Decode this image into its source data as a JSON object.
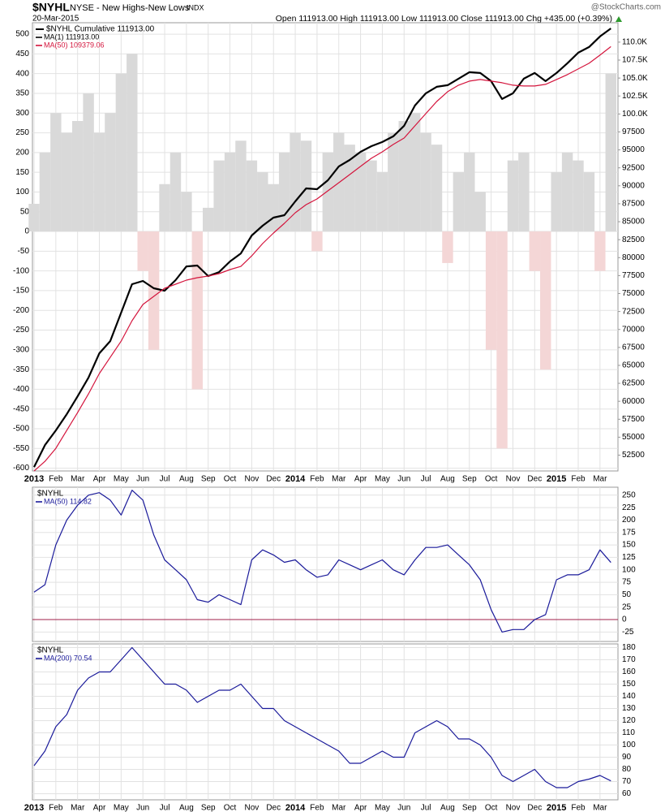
{
  "header": {
    "symbol": "$NYHL",
    "name": "NYSE - New Highs-New Lows",
    "exchange": "INDX",
    "date": "20-Mar-2015",
    "quote": "Open 111913.00  High 111913.00  Low 111913.00  Close 111913.00  Chg +435.00 (+0.39%)",
    "credit": "@StockCharts.com"
  },
  "chart_data": [
    {
      "type": "line",
      "title": "$NYHL Cumulative 111913.00",
      "title_color": "#000000",
      "categories": [
        "2013",
        null,
        "Feb",
        null,
        "Mar",
        null,
        "Apr",
        null,
        "May",
        null,
        "Jun",
        null,
        "Jul",
        null,
        "Aug",
        null,
        "Sep",
        null,
        "Oct",
        null,
        "Nov",
        null,
        "Dec",
        null,
        "2014",
        null,
        "Feb",
        null,
        "Mar",
        null,
        "Apr",
        null,
        "May",
        null,
        "Jun",
        null,
        "Jul",
        null,
        "Aug",
        null,
        "Sep",
        null,
        "Oct",
        null,
        "Nov",
        null,
        "Dec",
        null,
        "2015",
        null,
        "Feb",
        null,
        "Mar",
        null
      ],
      "ylim": [
        -607,
        529
      ],
      "yticks": [
        -600,
        -550,
        -500,
        -450,
        -400,
        -350,
        -300,
        -250,
        -200,
        -150,
        -100,
        -50,
        0,
        50,
        100,
        150,
        200,
        250,
        300,
        350,
        400,
        450,
        500
      ],
      "y2lim": [
        50300,
        112700
      ],
      "y2ticks": [
        52500,
        55000,
        57500,
        60000,
        62500,
        65000,
        67500,
        70000,
        72500,
        75000,
        77500,
        80000,
        82500,
        85000,
        87500,
        90000,
        92500,
        95000,
        97500,
        {
          "value": 100000,
          "label": "100.0K"
        },
        {
          "value": 102500,
          "label": "102.5K"
        },
        {
          "value": 105000,
          "label": "105.0K"
        },
        {
          "value": 107500,
          "label": "107.5K"
        },
        {
          "value": 110000,
          "label": "110.0K"
        }
      ],
      "grid": true,
      "series": [
        {
          "type": "area",
          "color": "#d9d9d9",
          "negative_color": "#f4d6d6",
          "values": [
            70,
            200,
            300,
            250,
            280,
            350,
            250,
            300,
            400,
            450,
            -100,
            -300,
            120,
            200,
            100,
            -400,
            60,
            180,
            200,
            230,
            180,
            150,
            120,
            200,
            250,
            230,
            -50,
            200,
            250,
            220,
            200,
            180,
            150,
            250,
            280,
            300,
            250,
            220,
            -80,
            150,
            200,
            100,
            -300,
            -550,
            180,
            200,
            -100,
            -350,
            150,
            200,
            180,
            150,
            -100,
            400
          ]
        },
        {
          "name": "MA(1) 111913.00",
          "axis": "y2",
          "color": "#000000",
          "width": 2.2,
          "values": [
            50837,
            53900,
            55940,
            58200,
            60690,
            63290,
            66680,
            68380,
            72340,
            76300,
            76750,
            75730,
            75390,
            76860,
            78780,
            78900,
            77430,
            77990,
            79460,
            80590,
            83080,
            84440,
            85570,
            85910,
            87830,
            89640,
            89530,
            90770,
            92700,
            93600,
            94730,
            95520,
            96090,
            96880,
            98350,
            101180,
            102880,
            103780,
            104010,
            104910,
            105820,
            105700,
            104570,
            102080,
            102880,
            104910,
            105700,
            104570,
            105700,
            107060,
            108530,
            109320,
            110790,
            111913
          ]
        },
        {
          "name": "MA(50) 109379.06",
          "axis": "y2",
          "color": "#d4143c",
          "width": 1.2,
          "values": [
            50290,
            51630,
            53440,
            55940,
            58430,
            61030,
            63860,
            66120,
            68380,
            71210,
            73470,
            74600,
            75730,
            76300,
            76860,
            77200,
            77430,
            77770,
            78330,
            78780,
            80250,
            81950,
            83420,
            84780,
            86250,
            87380,
            88170,
            89300,
            90430,
            91560,
            92700,
            93830,
            94730,
            95750,
            96650,
            98350,
            100050,
            101740,
            103100,
            104010,
            104570,
            104800,
            104570,
            104350,
            104010,
            103890,
            103890,
            104120,
            104800,
            105480,
            106270,
            107060,
            108190,
            109379
          ]
        }
      ]
    },
    {
      "type": "line",
      "title": "$NYHL",
      "ylim": [
        -44,
        266
      ],
      "yticks": [
        -25,
        0,
        25,
        50,
        75,
        100,
        125,
        150,
        175,
        200,
        225,
        250
      ],
      "grid": true,
      "reference_line": 0,
      "reference_color": "#a0204a",
      "series": [
        {
          "name": "MA(50) 114.82",
          "color": "#1a1a9a",
          "width": 1.2,
          "values": [
            55,
            70,
            150,
            200,
            230,
            250,
            255,
            240,
            210,
            260,
            240,
            170,
            120,
            100,
            80,
            40,
            35,
            50,
            40,
            30,
            120,
            140,
            130,
            115,
            120,
            100,
            85,
            90,
            120,
            110,
            100,
            110,
            120,
            100,
            90,
            120,
            145,
            145,
            150,
            130,
            110,
            80,
            20,
            -25,
            -20,
            -20,
            0,
            10,
            80,
            90,
            90,
            100,
            140,
            114.82
          ]
        }
      ]
    },
    {
      "type": "line",
      "title": "$NYHL",
      "ylim": [
        55,
        183
      ],
      "yticks": [
        60,
        70,
        80,
        90,
        100,
        110,
        120,
        130,
        140,
        150,
        160,
        170,
        180
      ],
      "grid": true,
      "categories": [
        "2013",
        null,
        "Feb",
        null,
        "Mar",
        null,
        "Apr",
        null,
        "May",
        null,
        "Jun",
        null,
        "Jul",
        null,
        "Aug",
        null,
        "Sep",
        null,
        "Oct",
        null,
        "Nov",
        null,
        "Dec",
        null,
        "2014",
        null,
        "Feb",
        null,
        "Mar",
        null,
        "Apr",
        null,
        "May",
        null,
        "Jun",
        null,
        "Jul",
        null,
        "Aug",
        null,
        "Sep",
        null,
        "Oct",
        null,
        "Nov",
        null,
        "Dec",
        null,
        "2015",
        null,
        "Feb",
        null,
        "Mar",
        null
      ],
      "series": [
        {
          "name": "MA(200) 70.54",
          "color": "#1a1a9a",
          "width": 1.2,
          "values": [
            83,
            95,
            115,
            125,
            145,
            155,
            160,
            160,
            170,
            180,
            170,
            160,
            150,
            150,
            145,
            135,
            140,
            145,
            145,
            150,
            140,
            130,
            130,
            120,
            115,
            110,
            105,
            100,
            95,
            85,
            85,
            90,
            95,
            90,
            90,
            110,
            115,
            120,
            115,
            105,
            105,
            100,
            90,
            75,
            70,
            75,
            80,
            70,
            65,
            65,
            70,
            72,
            75,
            70.54
          ]
        }
      ]
    }
  ]
}
